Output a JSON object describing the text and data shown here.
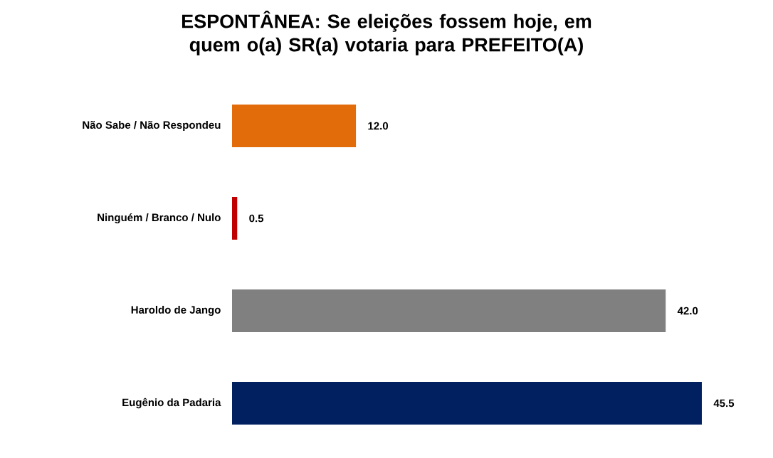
{
  "chart_data": {
    "type": "bar",
    "orientation": "horizontal",
    "title": "ESPONTÂNEA: Se eleições fossem hoje, em quem o(a) SR(a) votaria para PREFEITO(A)",
    "categories": [
      "Não Sabe / Não Respondeu",
      "Ninguém / Branco / Nulo",
      "Haroldo de Jango",
      "Eugênio da Padaria"
    ],
    "values": [
      12.0,
      0.5,
      42.0,
      45.5
    ],
    "colors": [
      "#e36c0a",
      "#c00000",
      "#808080",
      "#002060"
    ],
    "value_labels": [
      "12.0",
      "0.5",
      "42.0",
      "45.5"
    ]
  }
}
